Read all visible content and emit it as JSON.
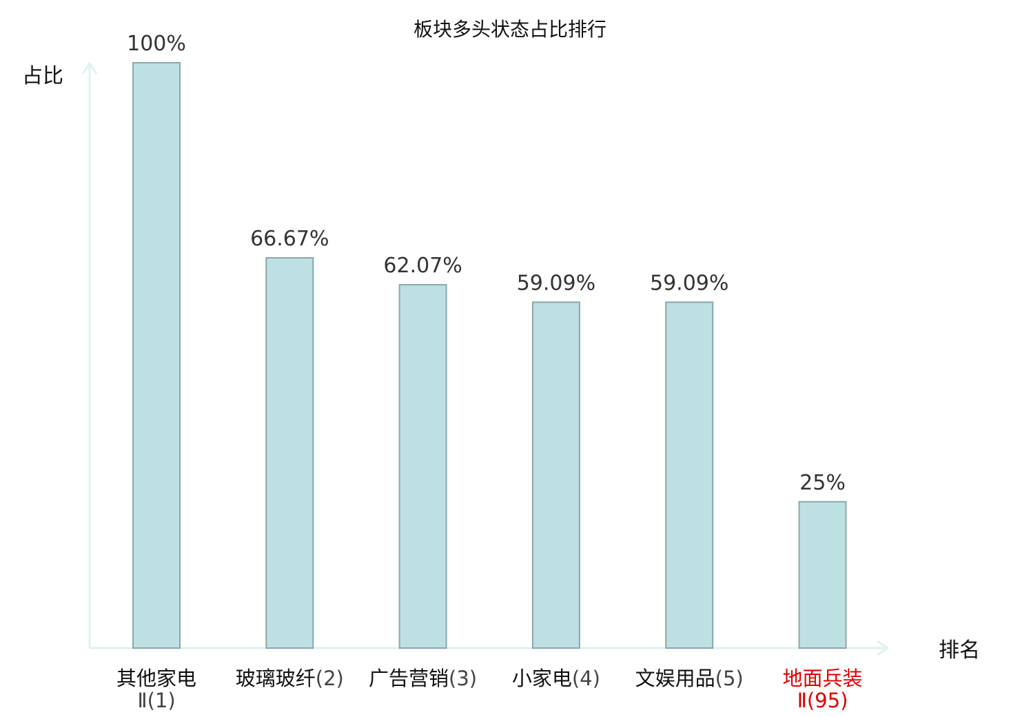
{
  "chart_data": {
    "type": "bar",
    "title": "板块多头状态占比排行",
    "ylabel": "占比",
    "xlabel": "排名",
    "ylim": [
      0,
      100
    ],
    "grid": false,
    "legend": "none",
    "bar_color": "#bde0e3",
    "bar_edge_color": "#8aa7aa",
    "axis_color": "#dff2f0",
    "highlight_color": "#e00000",
    "categories": [
      {
        "name": "其他家电",
        "rank": "Ⅱ(1)",
        "highlight": false
      },
      {
        "name": "玻璃玻纤",
        "rank": "(2)",
        "highlight": false
      },
      {
        "name": "广告营销",
        "rank": "(3)",
        "highlight": false
      },
      {
        "name": "小家电",
        "rank": "(4)",
        "highlight": false
      },
      {
        "name": "文娱用品",
        "rank": "(5)",
        "highlight": false
      },
      {
        "name": "地面兵装",
        "rank": "Ⅱ(95)",
        "highlight": true
      }
    ],
    "values": [
      100,
      66.67,
      62.07,
      59.09,
      59.09,
      25
    ],
    "value_labels": [
      "100%",
      "66.67%",
      "62.07%",
      "59.09%",
      "59.09%",
      "25%"
    ]
  }
}
